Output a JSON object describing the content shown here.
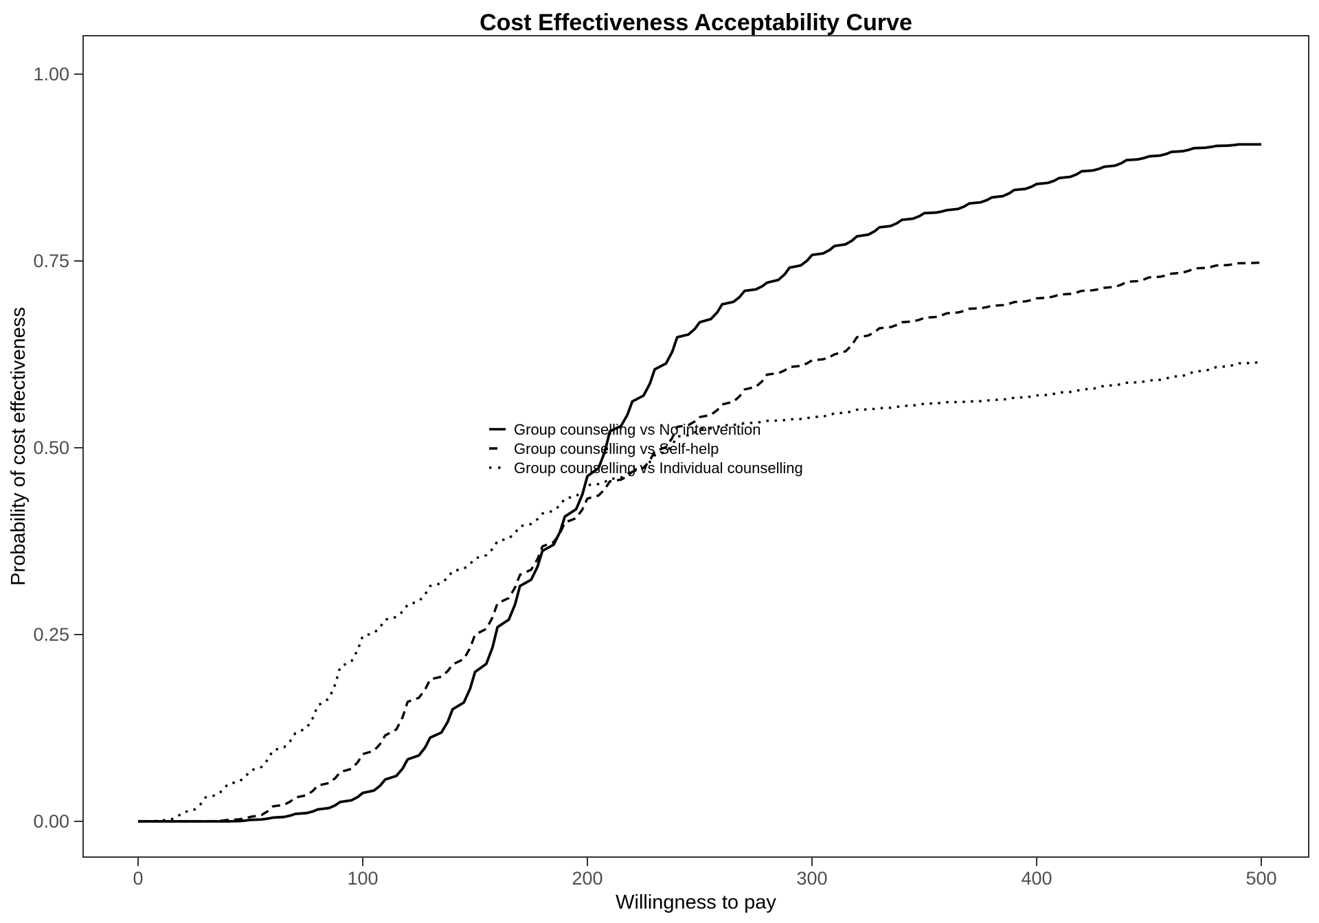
{
  "title": "Cost Effectiveness Acceptability Curve",
  "chart_data": {
    "type": "line",
    "title": "Cost Effectiveness Acceptability Curve",
    "xlabel": "Willingness to pay",
    "ylabel": "Probability of cost effectiveness",
    "xlim": [
      0,
      500
    ],
    "ylim": [
      0,
      1
    ],
    "x_ticks": [
      0,
      100,
      200,
      300,
      400,
      500
    ],
    "y_ticks": [
      0,
      0.25,
      0.5,
      0.75,
      1
    ],
    "y_tick_labels": [
      "0.00",
      "0.25",
      "0.50",
      "0.75",
      "1.00"
    ],
    "grid": false,
    "legend_position": "inside-center",
    "line_color": "#000000",
    "x": [
      0,
      10,
      20,
      30,
      40,
      50,
      60,
      70,
      80,
      90,
      100,
      110,
      120,
      130,
      140,
      150,
      160,
      170,
      180,
      190,
      200,
      210,
      220,
      230,
      240,
      250,
      260,
      270,
      280,
      290,
      300,
      310,
      320,
      330,
      340,
      350,
      360,
      370,
      380,
      390,
      400,
      410,
      420,
      430,
      440,
      450,
      460,
      470,
      480,
      490,
      500
    ],
    "series": [
      {
        "name": "Group counselling vs No intervention",
        "line_style": "solid",
        "values": [
          0,
          0,
          0,
          0,
          0,
          0.002,
          0.005,
          0.01,
          0.016,
          0.026,
          0.038,
          0.056,
          0.083,
          0.112,
          0.15,
          0.2,
          0.26,
          0.315,
          0.362,
          0.408,
          0.462,
          0.522,
          0.562,
          0.605,
          0.648,
          0.668,
          0.692,
          0.71,
          0.721,
          0.741,
          0.758,
          0.77,
          0.783,
          0.795,
          0.805,
          0.814,
          0.818,
          0.827,
          0.835,
          0.845,
          0.853,
          0.861,
          0.87,
          0.876,
          0.885,
          0.89,
          0.896,
          0.901,
          0.904,
          0.906,
          0.906
        ]
      },
      {
        "name": "Group counselling vs Self-help",
        "line_style": "dashed",
        "values": [
          0,
          0,
          0,
          0,
          0.002,
          0.006,
          0.02,
          0.032,
          0.048,
          0.066,
          0.09,
          0.115,
          0.16,
          0.19,
          0.21,
          0.25,
          0.292,
          0.33,
          0.368,
          0.4,
          0.432,
          0.455,
          0.468,
          0.495,
          0.528,
          0.541,
          0.558,
          0.578,
          0.598,
          0.608,
          0.617,
          0.625,
          0.648,
          0.66,
          0.668,
          0.674,
          0.68,
          0.686,
          0.69,
          0.695,
          0.7,
          0.705,
          0.71,
          0.714,
          0.722,
          0.728,
          0.733,
          0.74,
          0.744,
          0.747,
          0.748
        ]
      },
      {
        "name": "Group counselling vs Individual counselling",
        "line_style": "dotted",
        "values": [
          0,
          0.001,
          0.012,
          0.032,
          0.05,
          0.068,
          0.095,
          0.118,
          0.155,
          0.207,
          0.248,
          0.27,
          0.29,
          0.315,
          0.335,
          0.352,
          0.375,
          0.395,
          0.412,
          0.432,
          0.45,
          0.458,
          0.47,
          0.49,
          0.515,
          0.525,
          0.53,
          0.533,
          0.536,
          0.538,
          0.541,
          0.546,
          0.551,
          0.553,
          0.556,
          0.559,
          0.561,
          0.562,
          0.564,
          0.567,
          0.57,
          0.574,
          0.578,
          0.583,
          0.587,
          0.59,
          0.595,
          0.602,
          0.608,
          0.613,
          0.615
        ]
      }
    ]
  }
}
